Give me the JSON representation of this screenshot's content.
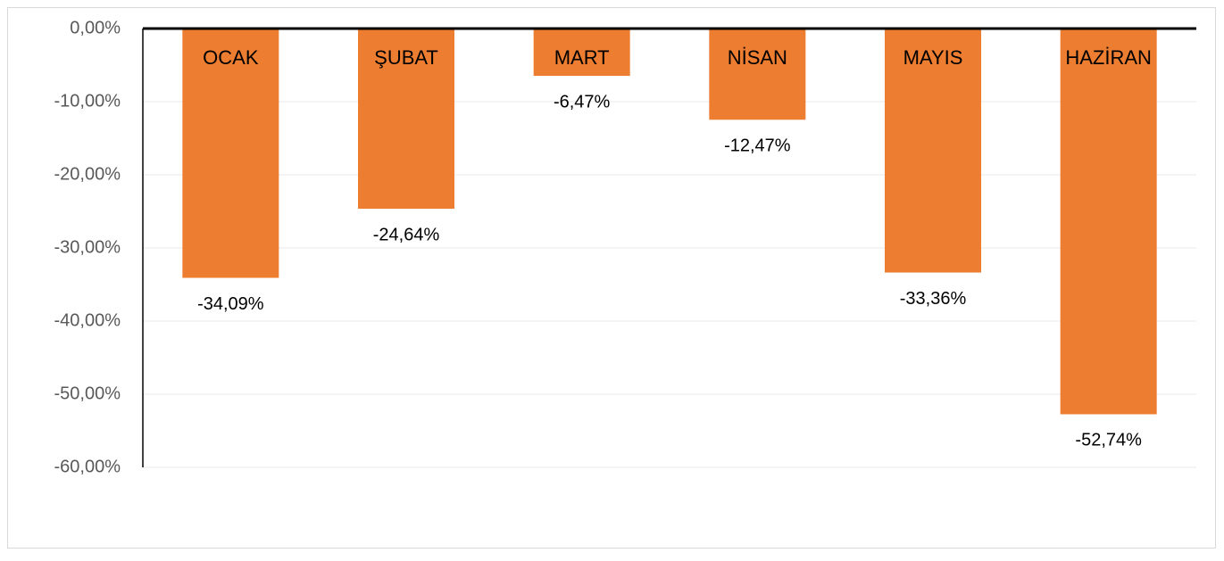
{
  "chart_data": {
    "type": "bar",
    "categories": [
      "OCAK",
      "ŞUBAT",
      "MART",
      "NİSAN",
      "MAYIS",
      "HAZİRAN"
    ],
    "values": [
      -34.09,
      -24.64,
      -6.47,
      -12.47,
      -33.36,
      -52.74
    ],
    "value_labels": [
      "-34,09%",
      "-24,64%",
      "-6,47%",
      "-12,47%",
      "-33,36%",
      "-52,74%"
    ],
    "color": "#ed7d31",
    "ylim": [
      -60,
      0
    ],
    "yticks": [
      {
        "value": 0,
        "label": "0,00%"
      },
      {
        "value": -10,
        "label": "-10,00%"
      },
      {
        "value": -20,
        "label": "-20,00%"
      },
      {
        "value": -30,
        "label": "-30,00%"
      },
      {
        "value": -40,
        "label": "-40,00%"
      },
      {
        "value": -50,
        "label": "-50,00%"
      },
      {
        "value": -60,
        "label": "-60,00%"
      }
    ],
    "grid": true
  }
}
